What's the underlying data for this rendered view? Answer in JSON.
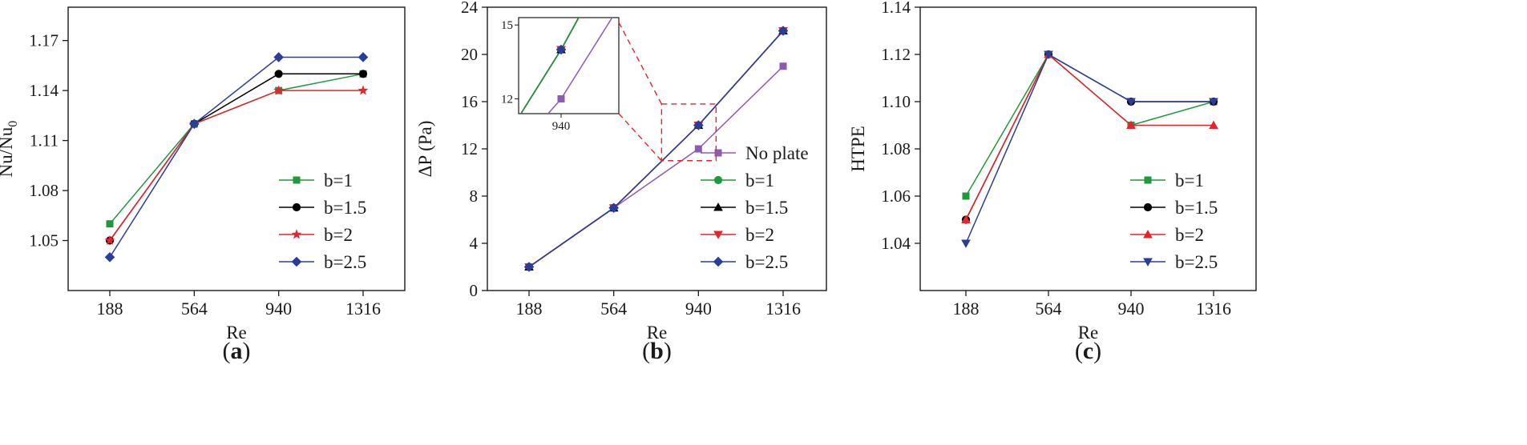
{
  "chart_data": [
    {
      "id": "a",
      "type": "line",
      "panel_label": "a",
      "categories": [
        "188",
        "564",
        "940",
        "1316"
      ],
      "xlabel": "Re",
      "ylabel_main": "Nu/Nu",
      "ylabel_sub": "0",
      "ylim": [
        1.02,
        1.19
      ],
      "yticks": [
        1.05,
        1.08,
        1.11,
        1.14,
        1.17
      ],
      "ytick_labels": [
        "1.05",
        "1.08",
        "1.11",
        "1.14",
        "1.17"
      ],
      "legend_position": "bottom-right",
      "series": [
        {
          "name": "b=1",
          "color": "#1e9a3c",
          "marker": "square",
          "values": [
            1.06,
            1.12,
            1.14,
            1.15
          ]
        },
        {
          "name": "b=1.5",
          "color": "#000000",
          "marker": "circle",
          "values": [
            1.05,
            1.12,
            1.15,
            1.15
          ]
        },
        {
          "name": "b=2",
          "color": "#e8232a",
          "marker": "star",
          "values": [
            1.05,
            1.12,
            1.14,
            1.14
          ]
        },
        {
          "name": "b=2.5",
          "color": "#2b3d9a",
          "marker": "diamond",
          "values": [
            1.04,
            1.12,
            1.16,
            1.16
          ]
        }
      ]
    },
    {
      "id": "b",
      "type": "line",
      "panel_label": "b",
      "categories": [
        "188",
        "564",
        "940",
        "1316"
      ],
      "xlabel": "Re",
      "ylabel_main": "ΔP (Pa)",
      "ylim": [
        0,
        24
      ],
      "yticks": [
        0,
        4,
        8,
        12,
        16,
        20,
        24
      ],
      "ytick_labels": [
        "0",
        "4",
        "8",
        "12",
        "16",
        "20",
        "24"
      ],
      "legend_position": "bottom-right",
      "series": [
        {
          "name": "No plate",
          "color": "#8e5bb0",
          "marker": "square",
          "values": [
            2,
            7,
            12,
            19
          ]
        },
        {
          "name": "b=1",
          "color": "#1e9a3c",
          "marker": "circle",
          "values": [
            2,
            7,
            14,
            22
          ]
        },
        {
          "name": "b=1.5",
          "color": "#000000",
          "marker": "triangle-up",
          "values": [
            2,
            7,
            14,
            22
          ]
        },
        {
          "name": "b=2",
          "color": "#e8232a",
          "marker": "triangle-down",
          "values": [
            2,
            7,
            14,
            22
          ]
        },
        {
          "name": "b=2.5",
          "color": "#2b3d9a",
          "marker": "diamond",
          "values": [
            2,
            7,
            14,
            22
          ]
        }
      ],
      "inset": {
        "x_tick_label": "940",
        "ylim": [
          11.4,
          15.3
        ],
        "yticks": [
          12,
          15
        ],
        "ytick_labels": [
          "12",
          "15"
        ],
        "focus_category": "940",
        "focus_y_range": [
          11,
          15.8
        ]
      }
    },
    {
      "id": "c",
      "type": "line",
      "panel_label": "c",
      "categories": [
        "188",
        "564",
        "940",
        "1316"
      ],
      "xlabel": "Re",
      "ylabel_main": "HTPE",
      "ylim": [
        1.02,
        1.14
      ],
      "yticks": [
        1.04,
        1.06,
        1.08,
        1.1,
        1.12,
        1.14
      ],
      "ytick_labels": [
        "1.04",
        "1.06",
        "1.08",
        "1.10",
        "1.12",
        "1.14"
      ],
      "legend_position": "bottom-right",
      "series": [
        {
          "name": "b=1",
          "color": "#1e9a3c",
          "marker": "square",
          "values": [
            1.06,
            1.12,
            1.09,
            1.1
          ]
        },
        {
          "name": "b=1.5",
          "color": "#000000",
          "marker": "circle",
          "values": [
            1.05,
            1.12,
            1.1,
            1.1
          ]
        },
        {
          "name": "b=2",
          "color": "#e8232a",
          "marker": "triangle-up",
          "values": [
            1.05,
            1.12,
            1.09,
            1.09
          ]
        },
        {
          "name": "b=2.5",
          "color": "#2b3d9a",
          "marker": "triangle-down",
          "values": [
            1.04,
            1.12,
            1.1,
            1.1
          ]
        }
      ]
    }
  ]
}
